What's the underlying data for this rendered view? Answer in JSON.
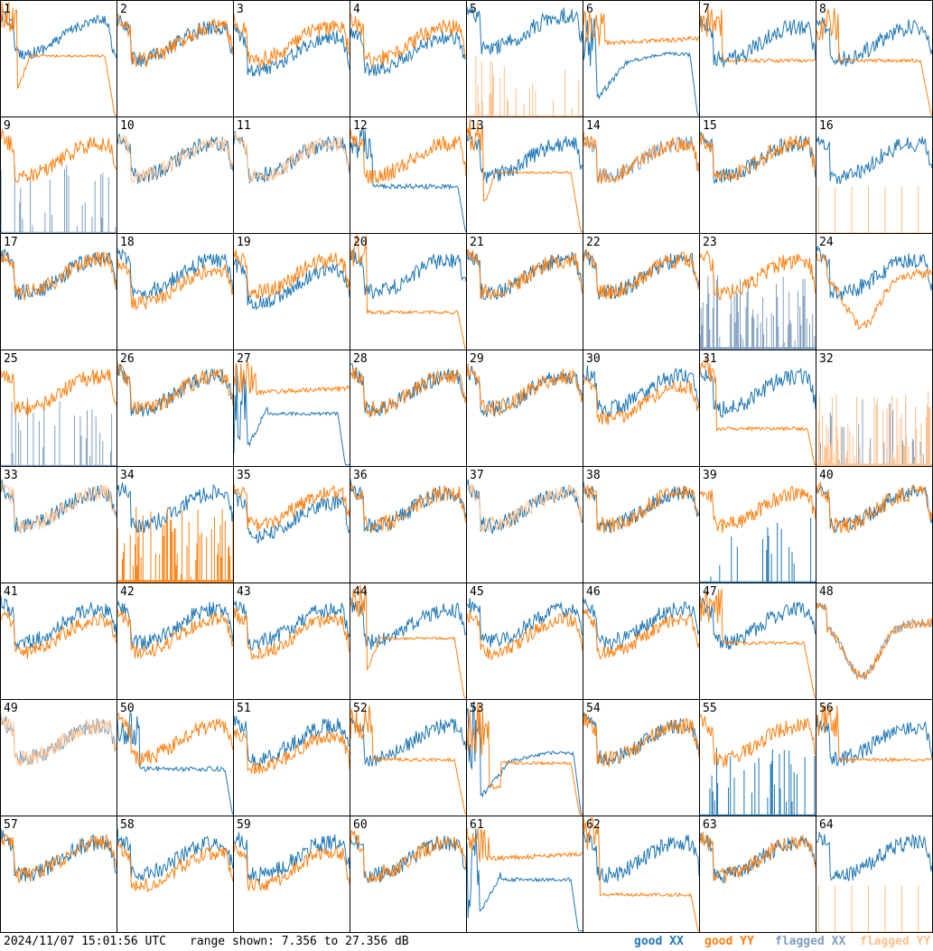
{
  "chart_data": {
    "type": "line",
    "layout": "8x8 small multiples",
    "xlabel": "",
    "ylabel": "",
    "ylim_db": [
      7.356,
      27.356
    ],
    "grid": false,
    "legend_placement": "bottom-right",
    "legend": [
      {
        "label": "good XX",
        "color": "#1f77b4"
      },
      {
        "label": "good YY",
        "color": "#ff7f0e"
      },
      {
        "label": "flagged XX",
        "color": "#7f9fbf"
      },
      {
        "label": "flagged YY",
        "color": "#fdc08c"
      }
    ],
    "panels": [
      {
        "id": "1",
        "x": "late-fall",
        "y": "fall-flat"
      },
      {
        "id": "2",
        "x": "std",
        "y": "std"
      },
      {
        "id": "3",
        "x": "std-low",
        "y": "std"
      },
      {
        "id": "4",
        "x": "std-low",
        "y": "std"
      },
      {
        "id": "5",
        "x": "std-high",
        "y": "flag-spikes"
      },
      {
        "id": "6",
        "x": "dip-mid",
        "y": "high-flat"
      },
      {
        "id": "7",
        "x": "std",
        "y": "flat-mid"
      },
      {
        "id": "8",
        "x": "std",
        "y": "flat-mid-fall"
      },
      {
        "id": "9",
        "x": "flag-spikes",
        "y": "std"
      },
      {
        "id": "10",
        "x": "std",
        "y": "flag-std"
      },
      {
        "id": "11",
        "x": "std",
        "y": "flag-std"
      },
      {
        "id": "12",
        "x": "drop-mid",
        "y": "std"
      },
      {
        "id": "13",
        "x": "std",
        "y": "fall-flat"
      },
      {
        "id": "14",
        "x": "flag-std",
        "y": "std"
      },
      {
        "id": "15",
        "x": "std",
        "y": "std"
      },
      {
        "id": "16",
        "x": "std",
        "y": "flag-baseline"
      },
      {
        "id": "17",
        "x": "std",
        "y": "std"
      },
      {
        "id": "18",
        "x": "std",
        "y": "std-low"
      },
      {
        "id": "19",
        "x": "std-low",
        "y": "std"
      },
      {
        "id": "20",
        "x": "std",
        "y": "low-flat"
      },
      {
        "id": "21",
        "x": "std",
        "y": "std"
      },
      {
        "id": "22",
        "x": "std",
        "y": "std"
      },
      {
        "id": "23",
        "x": "flag-noise",
        "y": "std"
      },
      {
        "id": "24",
        "x": "std",
        "y": "deep-u"
      },
      {
        "id": "25",
        "x": "flag-spikes",
        "y": "std"
      },
      {
        "id": "26",
        "x": "std",
        "y": "std"
      },
      {
        "id": "27",
        "x": "dip-mid-fall",
        "y": "high-flat"
      },
      {
        "id": "28",
        "x": "std",
        "y": "std"
      },
      {
        "id": "29",
        "x": "std",
        "y": "std"
      },
      {
        "id": "30",
        "x": "std",
        "y": "std-low"
      },
      {
        "id": "31",
        "x": "std",
        "y": "low-flat"
      },
      {
        "id": "32",
        "x": "flag-spikes",
        "y": "flag-noise"
      },
      {
        "id": "33",
        "x": "std",
        "y": "flag-std"
      },
      {
        "id": "34",
        "x": "std",
        "y": "noise-spikes"
      },
      {
        "id": "35",
        "x": "std-low",
        "y": "std"
      },
      {
        "id": "36",
        "x": "std",
        "y": "std"
      },
      {
        "id": "37",
        "x": "std",
        "y": "flag-std"
      },
      {
        "id": "38",
        "x": "std",
        "y": "std"
      },
      {
        "id": "39",
        "x": "spikes",
        "y": "std"
      },
      {
        "id": "40",
        "x": "std",
        "y": "std"
      },
      {
        "id": "41",
        "x": "std",
        "y": "std-low"
      },
      {
        "id": "42",
        "x": "std",
        "y": "std-low"
      },
      {
        "id": "43",
        "x": "std",
        "y": "std-low"
      },
      {
        "id": "44",
        "x": "std",
        "y": "fall-flat"
      },
      {
        "id": "45",
        "x": "std",
        "y": "std-low"
      },
      {
        "id": "46",
        "x": "std",
        "y": "std-low"
      },
      {
        "id": "47",
        "x": "std",
        "y": "flat-mid-fall"
      },
      {
        "id": "48",
        "x": "flag-u",
        "y": "deep-u"
      },
      {
        "id": "49",
        "x": "flag-std",
        "y": "flag-std"
      },
      {
        "id": "50",
        "x": "drop-mid",
        "y": "std"
      },
      {
        "id": "51",
        "x": "std",
        "y": "std-low"
      },
      {
        "id": "52",
        "x": "std",
        "y": "flat-mid-fall"
      },
      {
        "id": "53",
        "x": "dip-mid",
        "y": "dip-fall"
      },
      {
        "id": "54",
        "x": "std",
        "y": "std"
      },
      {
        "id": "55",
        "x": "spikes",
        "y": "std"
      },
      {
        "id": "56",
        "x": "std",
        "y": "flat-mid"
      },
      {
        "id": "57",
        "x": "std",
        "y": "std"
      },
      {
        "id": "58",
        "x": "std",
        "y": "std-low"
      },
      {
        "id": "59",
        "x": "std",
        "y": "std-low"
      },
      {
        "id": "60",
        "x": "std",
        "y": "std"
      },
      {
        "id": "61",
        "x": "dip-mid-fall",
        "y": "high-flat"
      },
      {
        "id": "62",
        "x": "std",
        "y": "low-flat"
      },
      {
        "id": "63",
        "x": "std",
        "y": "std"
      },
      {
        "id": "64",
        "x": "std",
        "y": "flag-baseline"
      }
    ]
  },
  "footer": {
    "timestamp": "2024/11/07 15:01:56 UTC",
    "range_text": "range shown: 7.356 to 27.356 dB"
  }
}
